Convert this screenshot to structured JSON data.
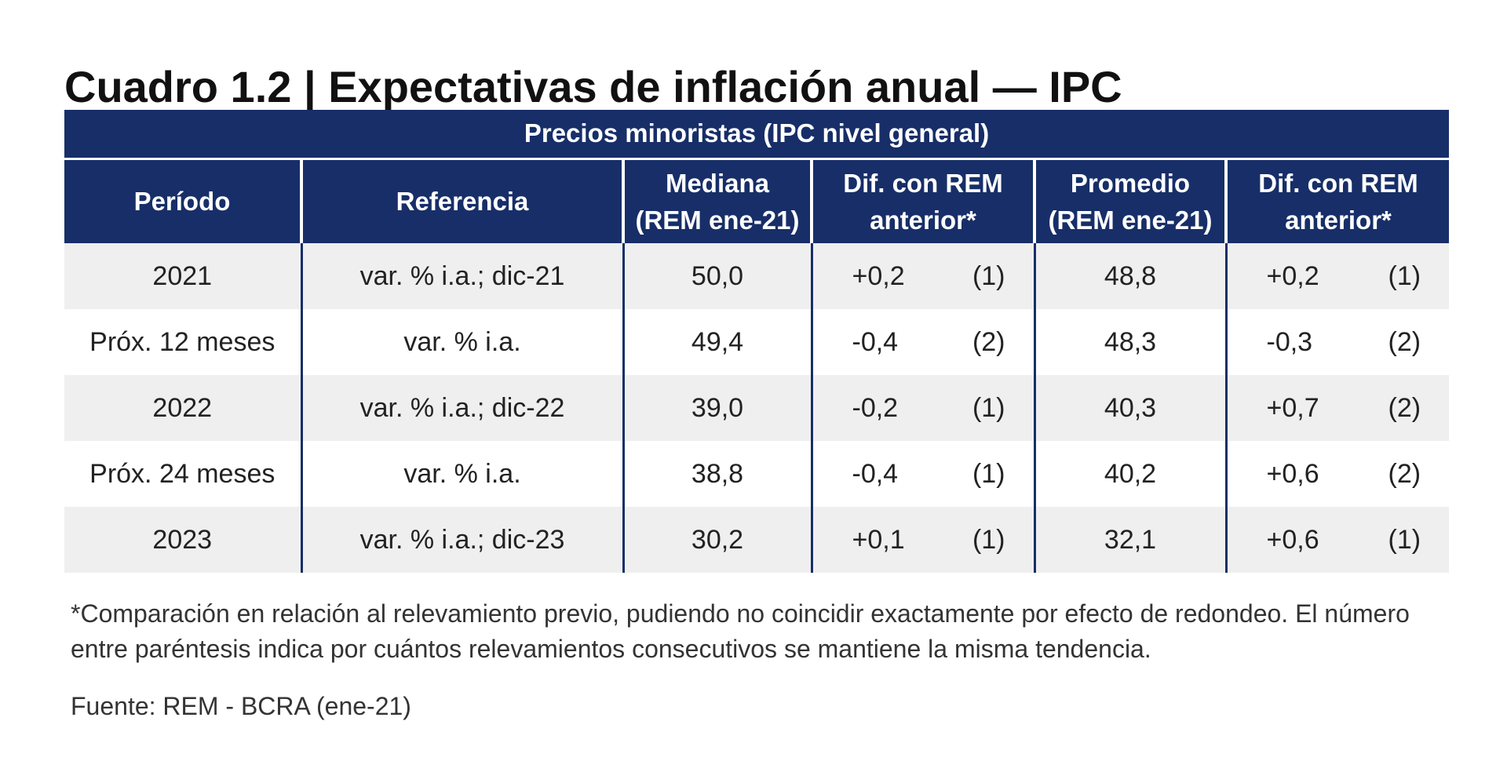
{
  "title": "Cuadro 1.2 | Expectativas de inflación anual — IPC",
  "table": {
    "group_header": "Precios minoristas (IPC nivel general)",
    "columns": {
      "periodo": "Período",
      "referencia": "Referencia",
      "mediana_l1": "Mediana",
      "mediana_l2": "(REM ene-21)",
      "dif1_l1": "Dif. con REM",
      "dif1_l2": "anterior*",
      "promedio_l1": "Promedio",
      "promedio_l2": "(REM ene-21)",
      "dif2_l1": "Dif. con REM",
      "dif2_l2": "anterior*"
    },
    "rows": [
      {
        "periodo": "2021",
        "referencia": "var. % i.a.; dic-21",
        "mediana": "50,0",
        "dif_mediana": "+0,2",
        "trend_mediana": "(1)",
        "promedio": "48,8",
        "dif_promedio": "+0,2",
        "trend_promedio": "(1)"
      },
      {
        "periodo": "Próx. 12 meses",
        "referencia": "var. % i.a.",
        "mediana": "49,4",
        "dif_mediana": "-0,4",
        "trend_mediana": "(2)",
        "promedio": "48,3",
        "dif_promedio": "-0,3",
        "trend_promedio": "(2)"
      },
      {
        "periodo": "2022",
        "referencia": "var. % i.a.; dic-22",
        "mediana": "39,0",
        "dif_mediana": "-0,2",
        "trend_mediana": "(1)",
        "promedio": "40,3",
        "dif_promedio": "+0,7",
        "trend_promedio": "(2)"
      },
      {
        "periodo": "Próx. 24 meses",
        "referencia": "var. % i.a.",
        "mediana": "38,8",
        "dif_mediana": "-0,4",
        "trend_mediana": "(1)",
        "promedio": "40,2",
        "dif_promedio": "+0,6",
        "trend_promedio": "(2)"
      },
      {
        "periodo": "2023",
        "referencia": "var. % i.a.; dic-23",
        "mediana": "30,2",
        "dif_mediana": "+0,1",
        "trend_mediana": "(1)",
        "promedio": "32,1",
        "dif_promedio": "+0,6",
        "trend_promedio": "(1)"
      }
    ]
  },
  "footnote": "*Comparación en relación al relevamiento previo, pudiendo no coincidir exactamente por efecto de redondeo. El número entre paréntesis indica por cuántos relevamientos consecutivos se mantiene la misma tendencia.",
  "source": "Fuente: REM - BCRA (ene-21)",
  "colors": {
    "header_bg": "#172e68",
    "row_shade": "#efefef"
  }
}
